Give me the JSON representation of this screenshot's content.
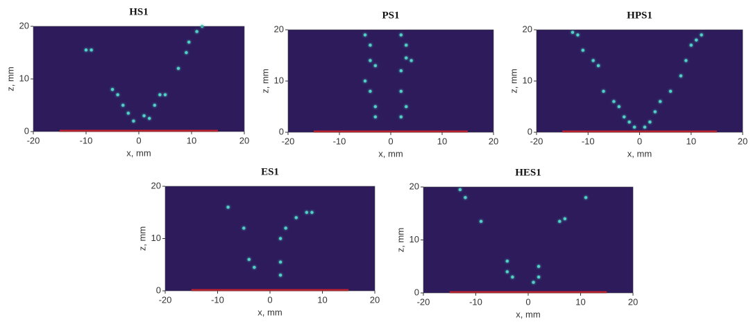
{
  "chart_data": [
    {
      "type": "scatter",
      "title": "HS1",
      "xlabel": "x, mm",
      "ylabel": "z, mm",
      "xlim": [
        -20,
        20
      ],
      "ylim": [
        0,
        20
      ],
      "xticks": [
        -20,
        -10,
        0,
        10,
        20
      ],
      "yticks": [
        0,
        10,
        20
      ],
      "background": "#2d1b5c",
      "color": "#4fd1c5",
      "line_x": [
        -15,
        15
      ],
      "line_color": "#c8202a",
      "x": [
        -10,
        -9,
        -5,
        -4,
        -3,
        -2,
        -1,
        1,
        2,
        3,
        4,
        5,
        7.5,
        9,
        9.5,
        11,
        12
      ],
      "values": [
        15.5,
        15.5,
        8,
        7,
        5,
        3.5,
        2,
        3,
        2.5,
        5,
        7,
        7,
        12,
        15,
        17,
        19,
        20
      ]
    },
    {
      "type": "scatter",
      "title": "PS1",
      "xlabel": "x, mm",
      "ylabel": "z, mm",
      "xlim": [
        -20,
        20
      ],
      "ylim": [
        0,
        20
      ],
      "xticks": [
        -20,
        -10,
        0,
        10,
        20
      ],
      "yticks": [
        0,
        10,
        20
      ],
      "background": "#2d1b5c",
      "color": "#4fd1c5",
      "line_x": [
        -15,
        15
      ],
      "line_color": "#c8202a",
      "x": [
        -5,
        -4,
        -4,
        -3,
        -5,
        -4,
        -3,
        -3,
        2,
        3,
        3,
        4,
        2,
        2,
        3,
        2
      ],
      "values": [
        19,
        17,
        14,
        13,
        10,
        8,
        5,
        3,
        19,
        17,
        14.5,
        14,
        12,
        8,
        5,
        3
      ]
    },
    {
      "type": "scatter",
      "title": "HPS1",
      "xlabel": "x, mm",
      "ylabel": "z, mm",
      "xlim": [
        -20,
        20
      ],
      "ylim": [
        0,
        20
      ],
      "xticks": [
        -20,
        -10,
        0,
        10,
        20
      ],
      "yticks": [
        0,
        10,
        20
      ],
      "background": "#2d1b5c",
      "color": "#4fd1c5",
      "line_x": [
        -15,
        15
      ],
      "line_color": "#c8202a",
      "x": [
        -13,
        -12,
        -11,
        -9,
        -8,
        -7,
        -5,
        -4,
        -3,
        -2,
        -1,
        1,
        2,
        3,
        4,
        6,
        8,
        9,
        10,
        11,
        12
      ],
      "values": [
        19.5,
        19,
        16,
        14,
        13,
        8,
        6,
        5,
        3,
        2,
        1,
        1,
        2,
        4,
        6,
        8,
        11,
        14,
        17,
        18,
        19
      ]
    },
    {
      "type": "scatter",
      "title": "ES1",
      "xlabel": "x, mm",
      "ylabel": "z, mm",
      "xlim": [
        -20,
        20
      ],
      "ylim": [
        0,
        20
      ],
      "xticks": [
        -20,
        -10,
        0,
        10,
        20
      ],
      "yticks": [
        0,
        10,
        20
      ],
      "background": "#2d1b5c",
      "color": "#4fd1c5",
      "line_x": [
        -15,
        15
      ],
      "line_color": "#c8202a",
      "x": [
        -4,
        -3,
        2,
        2,
        2,
        3,
        5,
        7,
        8,
        -8,
        -5
      ],
      "values": [
        6,
        4.5,
        5.5,
        3,
        10,
        12,
        14,
        15,
        15,
        16,
        12
      ]
    },
    {
      "type": "scatter",
      "title": "HES1",
      "xlabel": "x, mm",
      "ylabel": "z, mm",
      "xlim": [
        -20,
        20
      ],
      "ylim": [
        0,
        20
      ],
      "xticks": [
        -20,
        -10,
        0,
        10,
        20
      ],
      "yticks": [
        0,
        10,
        20
      ],
      "background": "#2d1b5c",
      "color": "#4fd1c5",
      "line_x": [
        -15,
        15
      ],
      "line_color": "#c8202a",
      "x": [
        -13,
        -12,
        -9,
        -4,
        -4,
        -3,
        1,
        2,
        2,
        6,
        7,
        11
      ],
      "values": [
        19.5,
        18,
        13.5,
        6,
        4,
        3,
        2,
        3,
        5,
        13.5,
        14,
        18
      ]
    }
  ]
}
